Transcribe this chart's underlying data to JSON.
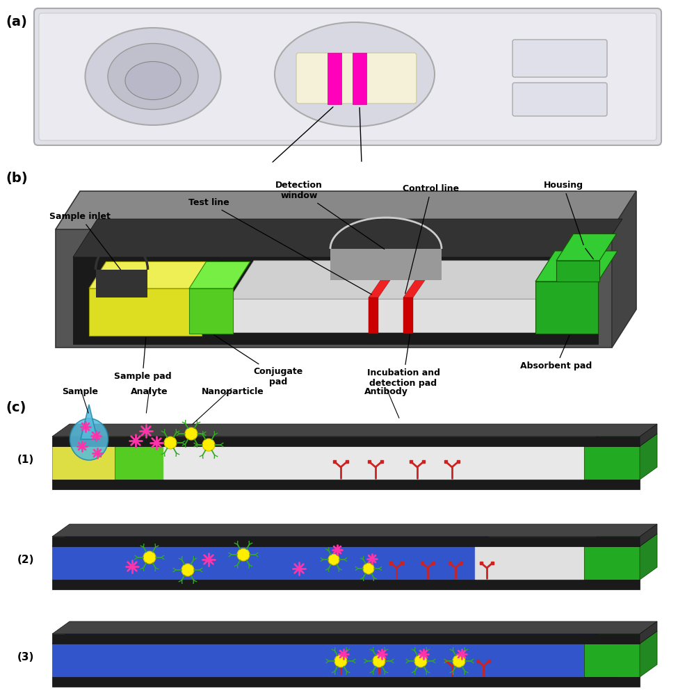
{
  "bg_color": "#ffffff",
  "panel_a_label": "(a)",
  "panel_b_label": "(b)",
  "panel_c_label": "(c)",
  "device_bg": "#dcdce0",
  "housing_front": "#555555",
  "housing_top": "#888888",
  "housing_side": "#444444",
  "housing_dark": "#222222",
  "sample_pad_yellow": "#dddd22",
  "conj_pad_green": "#55cc22",
  "absorbent_green": "#22aa22",
  "strip_white": "#e8e8e8",
  "strip_gray": "#c8c8c8",
  "red_line": "#cc0000",
  "pink_stripe": "#ff00bb",
  "blue_solution": "#3355cc",
  "blue_light": "#4466dd",
  "yellow_np": "#ffee00",
  "green_ab": "#33aa22",
  "pink_star": "#ff44aa",
  "red_ab": "#cc2222",
  "cyan_drop": "#55bbdd",
  "black_edge": "#111111",
  "label_fontsize": 9,
  "title_fontsize": 14
}
